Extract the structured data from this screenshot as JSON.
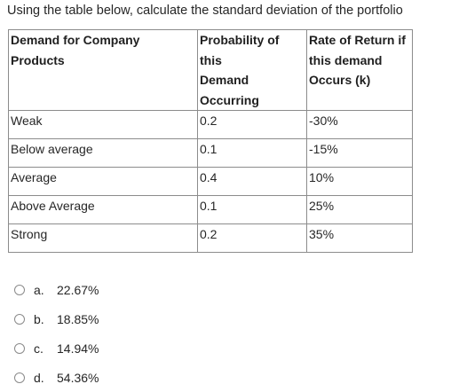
{
  "question": "Using the table below, calculate the standard deviation of the portfolio",
  "table": {
    "headers": [
      [
        "Demand for Company Products"
      ],
      [
        "Probability of this",
        "Demand",
        "Occurring"
      ],
      [
        "Rate of Return if",
        "this demand",
        "Occurs (k)"
      ]
    ],
    "rows": [
      [
        "Weak",
        "0.2",
        "-30%"
      ],
      [
        "Below average",
        "0.1",
        "-15%"
      ],
      [
        "Average",
        "0.4",
        "10%"
      ],
      [
        "Above Average",
        "0.1",
        "25%"
      ],
      [
        "Strong",
        "0.2",
        "35%"
      ]
    ]
  },
  "options": [
    {
      "letter": "a.",
      "text": "22.67%"
    },
    {
      "letter": "b.",
      "text": "18.85%"
    },
    {
      "letter": "c.",
      "text": "14.94%"
    },
    {
      "letter": "d.",
      "text": "54.36%"
    }
  ]
}
